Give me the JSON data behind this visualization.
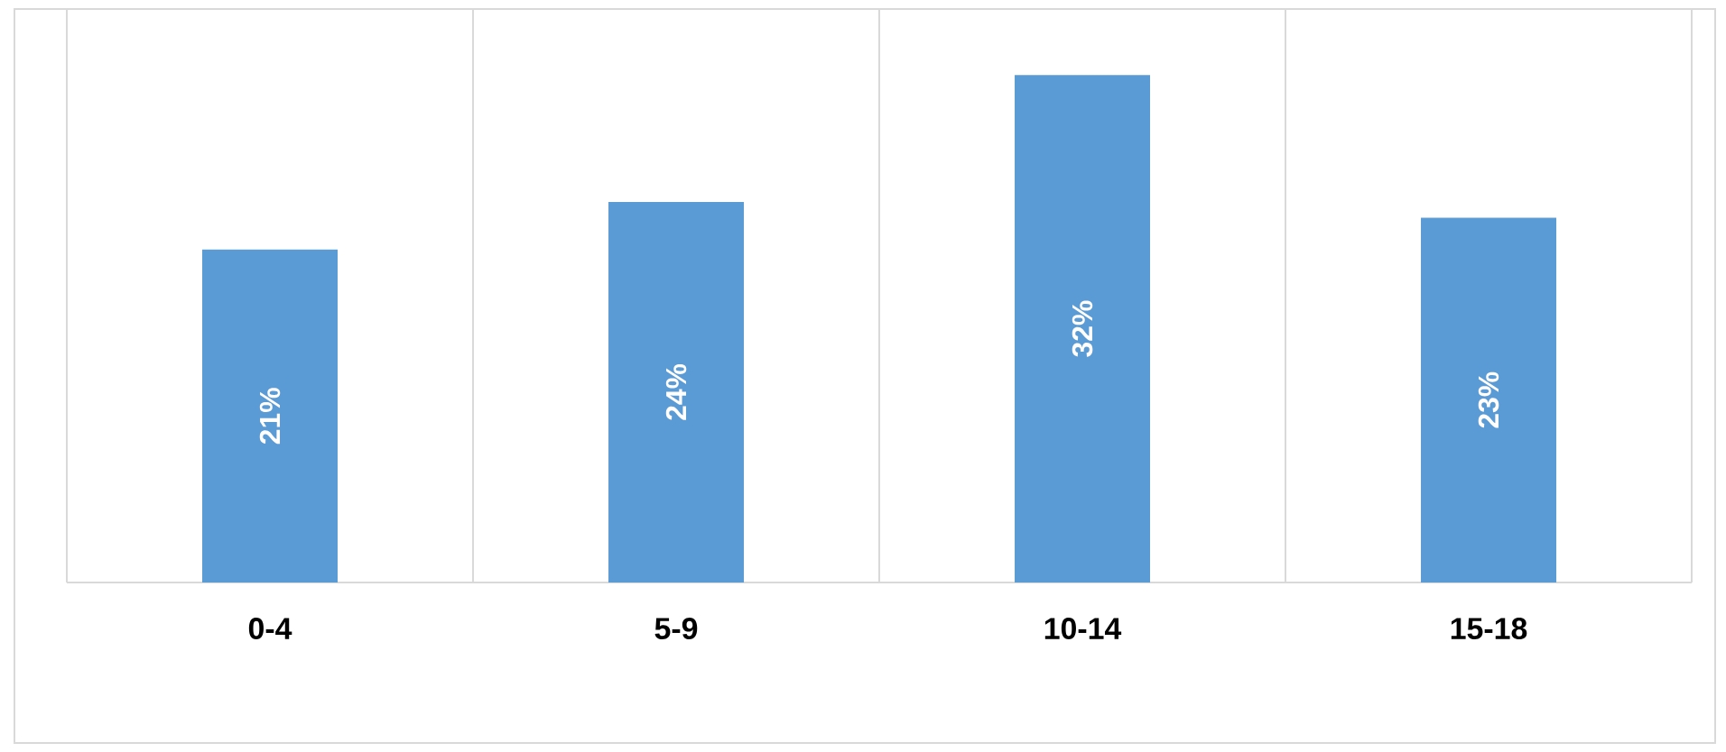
{
  "chart_data": {
    "type": "bar",
    "categories": [
      "0-4",
      "5-9",
      "10-14",
      "15-18"
    ],
    "values": [
      21,
      24,
      32,
      23
    ],
    "value_labels": [
      "21%",
      "24%",
      "32%",
      "23%"
    ],
    "color": "#5b9bd5",
    "grid": "x"
  }
}
